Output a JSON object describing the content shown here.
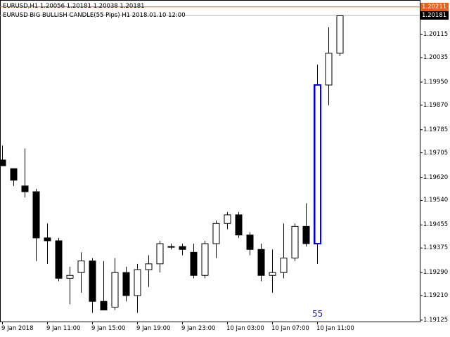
{
  "header": {
    "symbol_line": "EURUSD,H1  1.20056 1.20181 1.20038 1.20181",
    "indicator_line": "EURUSD BIG BULLISH CANDLE(55 Pips) H1 2018.01.10 12:00"
  },
  "price_tags": {
    "ask": {
      "label": "1.20211",
      "value": 1.20211,
      "color": "#e8601c"
    },
    "bid": {
      "label": "1.20181",
      "value": 1.20181,
      "color": "#000000"
    }
  },
  "colors": {
    "background": "#ffffff",
    "bull_fill": "#ffffff",
    "bear_fill": "#000000",
    "outline": "#000000",
    "highlight": "#0000ff",
    "ask_line": "#e8601c",
    "bid_line": "#b0b0b0"
  },
  "annotation": {
    "text": "55",
    "color": "#1a1acd"
  },
  "chart_data": {
    "type": "candlestick",
    "title": "EURUSD,H1",
    "xlabel": "",
    "ylabel": "",
    "ylim": [
      1.1912,
      1.2022
    ],
    "grid": false,
    "y_ticks": [
      "1.20115",
      "1.20035",
      "1.19950",
      "1.19870",
      "1.19785",
      "1.19705",
      "1.19620",
      "1.19540",
      "1.19455",
      "1.19375",
      "1.19290",
      "1.19210",
      "1.19125"
    ],
    "x_ticks": [
      "9 Jan 2018",
      "9 Jan 11:00",
      "9 Jan 15:00",
      "9 Jan 19:00",
      "9 Jan 23:00",
      "10 Jan 03:00",
      "10 Jan 07:00",
      "10 Jan 11:00"
    ],
    "candles": [
      {
        "o": 1.1968,
        "h": 1.1973,
        "l": 1.1967,
        "c": 1.1966
      },
      {
        "o": 1.1965,
        "h": 1.1965,
        "l": 1.1959,
        "c": 1.1961
      },
      {
        "o": 1.1959,
        "h": 1.1972,
        "l": 1.1955,
        "c": 1.1957
      },
      {
        "o": 1.1957,
        "h": 1.1958,
        "l": 1.1933,
        "c": 1.1941
      },
      {
        "o": 1.1941,
        "h": 1.1946,
        "l": 1.1932,
        "c": 1.194
      },
      {
        "o": 1.194,
        "h": 1.1941,
        "l": 1.1926,
        "c": 1.1927
      },
      {
        "o": 1.1927,
        "h": 1.1931,
        "l": 1.1918,
        "c": 1.1928
      },
      {
        "o": 1.1929,
        "h": 1.1936,
        "l": 1.1922,
        "c": 1.1933
      },
      {
        "o": 1.1933,
        "h": 1.1934,
        "l": 1.1915,
        "c": 1.1919
      },
      {
        "o": 1.1919,
        "h": 1.1933,
        "l": 1.1916,
        "c": 1.1916
      },
      {
        "o": 1.1917,
        "h": 1.1934,
        "l": 1.1916,
        "c": 1.1929
      },
      {
        "o": 1.1929,
        "h": 1.1931,
        "l": 1.1919,
        "c": 1.1921
      },
      {
        "o": 1.1921,
        "h": 1.1932,
        "l": 1.1915,
        "c": 1.193
      },
      {
        "o": 1.193,
        "h": 1.1935,
        "l": 1.1924,
        "c": 1.1932
      },
      {
        "o": 1.1932,
        "h": 1.194,
        "l": 1.1929,
        "c": 1.1939
      },
      {
        "o": 1.1938,
        "h": 1.1939,
        "l": 1.1937,
        "c": 1.1938
      },
      {
        "o": 1.1938,
        "h": 1.1939,
        "l": 1.1935,
        "c": 1.1937
      },
      {
        "o": 1.1936,
        "h": 1.1939,
        "l": 1.1927,
        "c": 1.1928
      },
      {
        "o": 1.1928,
        "h": 1.194,
        "l": 1.1927,
        "c": 1.1939
      },
      {
        "o": 1.1939,
        "h": 1.1947,
        "l": 1.1934,
        "c": 1.1946
      },
      {
        "o": 1.1946,
        "h": 1.195,
        "l": 1.1944,
        "c": 1.1949
      },
      {
        "o": 1.1949,
        "h": 1.195,
        "l": 1.1941,
        "c": 1.1942
      },
      {
        "o": 1.1942,
        "h": 1.1943,
        "l": 1.1935,
        "c": 1.1937
      },
      {
        "o": 1.1937,
        "h": 1.1939,
        "l": 1.1926,
        "c": 1.1928
      },
      {
        "o": 1.1928,
        "h": 1.1937,
        "l": 1.1922,
        "c": 1.1929
      },
      {
        "o": 1.1929,
        "h": 1.1946,
        "l": 1.1927,
        "c": 1.1934
      },
      {
        "o": 1.1934,
        "h": 1.1946,
        "l": 1.1933,
        "c": 1.1945
      },
      {
        "o": 1.1945,
        "h": 1.1953,
        "l": 1.1938,
        "c": 1.1939
      },
      {
        "o": 1.1939,
        "h": 1.2001,
        "l": 1.1932,
        "c": 1.1994,
        "highlight": true
      },
      {
        "o": 1.1994,
        "h": 1.2014,
        "l": 1.1987,
        "c": 1.2005
      },
      {
        "o": 1.2005,
        "h": 1.2018,
        "l": 1.2004,
        "c": 1.2018
      }
    ]
  }
}
